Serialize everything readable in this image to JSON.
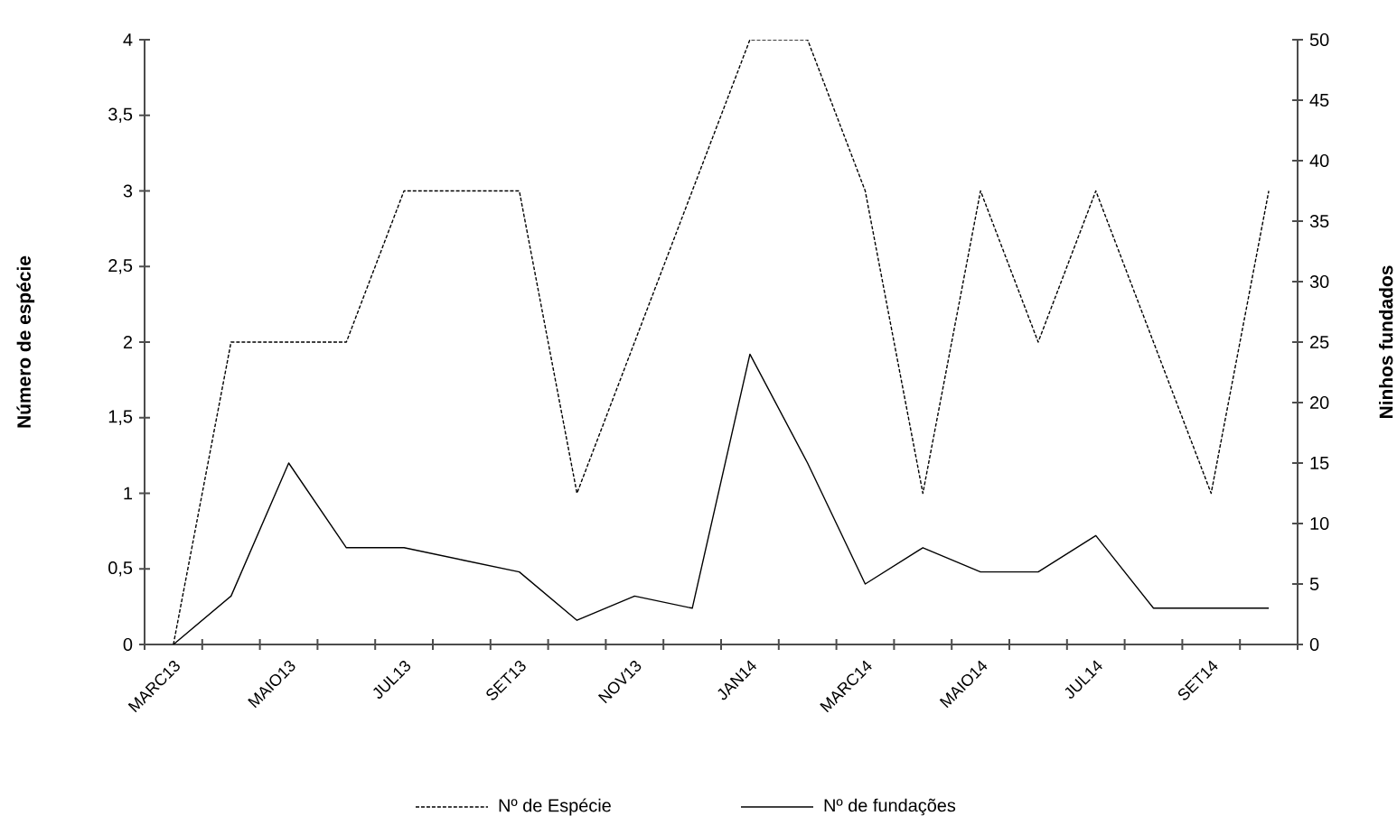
{
  "chart_data": {
    "type": "line",
    "categories": [
      "MARC13",
      null,
      "MAIO13",
      null,
      "JUL13",
      null,
      "SET13",
      null,
      "NOV13",
      null,
      "JAN14",
      null,
      "MARC14",
      null,
      "MAIO14",
      null,
      "JUL14",
      null,
      "SET14",
      null
    ],
    "series": [
      {
        "name": "Nº de Espécie",
        "color": "#000000",
        "line_style": "dashed",
        "values": [
          0,
          2,
          2,
          2,
          3,
          3,
          3,
          1,
          2,
          3,
          4,
          4,
          3,
          1,
          3,
          2,
          3,
          2,
          1,
          3
        ]
      },
      {
        "name": "Nº de fundações",
        "color": "#000000",
        "line_style": "solid",
        "axis": "y2",
        "values": [
          0,
          4,
          15,
          8,
          8,
          7,
          6,
          2,
          4,
          3,
          24,
          15,
          5,
          8,
          6,
          6,
          9,
          3,
          3,
          3
        ]
      }
    ],
    "ylabel": "Número de espécie",
    "y2label": "Ninhos fundados",
    "ylim": [
      0,
      4
    ],
    "yticks": [
      0,
      {
        "value": 0.5,
        "label": "0,5"
      },
      1,
      {
        "value": 1.5,
        "label": "1,5"
      },
      2,
      {
        "value": 2.5,
        "label": "2,5"
      },
      3,
      {
        "value": 3.5,
        "label": "3,5"
      },
      4
    ],
    "y2lim": [
      0,
      50
    ],
    "y2ticks": [
      0,
      5,
      10,
      15,
      20,
      25,
      30,
      35,
      40,
      45,
      50
    ],
    "grid": false,
    "legend": "bottom",
    "marker": "none"
  }
}
